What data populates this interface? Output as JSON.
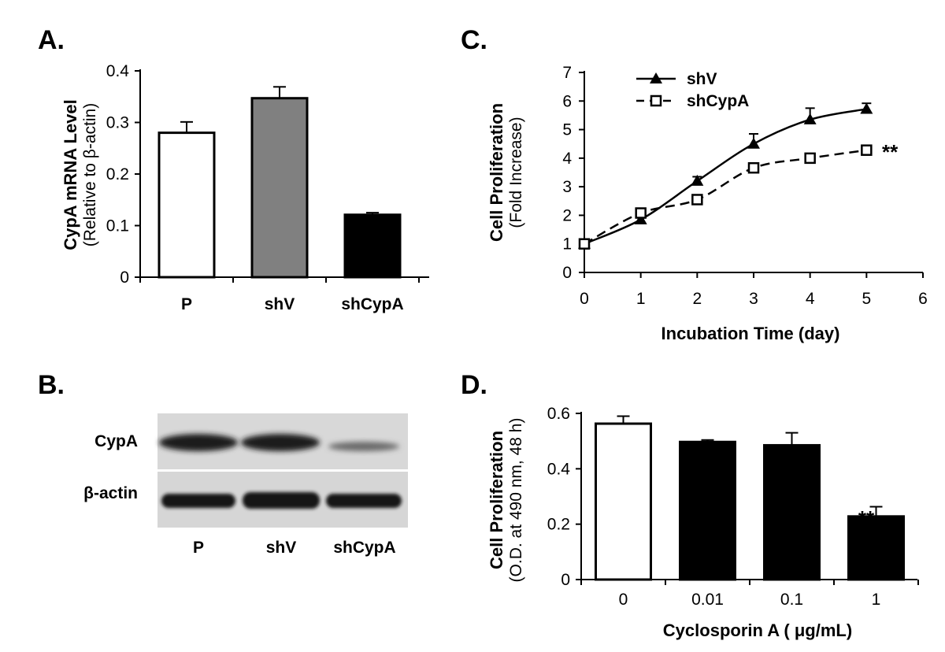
{
  "panels": {
    "a": {
      "letter": "A.",
      "ylabel_main": "CypA mRNA Level",
      "ylabel_sub": "(Relative to β-actin)"
    },
    "b": {
      "letter": "B.",
      "row_labels": [
        "CypA",
        "β-actin"
      ],
      "lane_labels": [
        "P",
        "shV",
        "shCypA"
      ]
    },
    "c": {
      "letter": "C.",
      "ylabel_main": "Cell Proliferation",
      "ylabel_sub": "(Fold Increase)",
      "xlabel": "Incubation Time (day)",
      "annotation": "**"
    },
    "d": {
      "letter": "D.",
      "ylabel_main": "Cell Proliferation",
      "ylabel_sub": "(O.D. at 490 nm, 48 h)",
      "xlabel": "Cyclosporin A ( μg/mL)",
      "annotation": "**"
    }
  },
  "chart_data": [
    {
      "panel": "A",
      "type": "bar",
      "categories": [
        "P",
        "shV",
        "shCypA"
      ],
      "values": [
        0.28,
        0.347,
        0.121
      ],
      "errors": [
        0.021,
        0.022,
        0.004
      ],
      "colors": [
        "#ffffff",
        "#808080",
        "#000000"
      ],
      "ylabel": "CypA mRNA Level (Relative to β-actin)",
      "ylim": [
        0,
        0.4
      ],
      "yticks": [
        "0",
        "0.1",
        "0.2",
        "0.3",
        "0.4"
      ]
    },
    {
      "panel": "C",
      "type": "line",
      "x": [
        0,
        1,
        2,
        3,
        4,
        5
      ],
      "series": [
        {
          "name": "shV",
          "values": [
            1.0,
            1.85,
            3.2,
            4.5,
            5.35,
            5.72
          ],
          "errors": [
            0.08,
            0.1,
            0.15,
            0.35,
            0.4,
            0.2
          ],
          "marker": "triangle",
          "style": "solid"
        },
        {
          "name": "shCypA",
          "values": [
            1.0,
            2.08,
            2.55,
            3.66,
            4.0,
            4.28
          ],
          "errors": [
            0.08,
            0.08,
            0.15,
            0.1,
            0.1,
            0.15
          ],
          "marker": "open-square",
          "style": "dashed"
        }
      ],
      "xlabel": "Incubation Time (day)",
      "ylabel": "Cell Proliferation (Fold Increase)",
      "xlim": [
        0,
        6
      ],
      "ylim": [
        0,
        7
      ],
      "xticks": [
        "0",
        "1",
        "2",
        "3",
        "4",
        "5",
        "6"
      ],
      "yticks": [
        "0",
        "1",
        "2",
        "3",
        "4",
        "5",
        "6",
        "7"
      ],
      "legend": "top-left"
    },
    {
      "panel": "D",
      "type": "bar",
      "categories": [
        "0",
        "0.01",
        "0.1",
        "1"
      ],
      "values": [
        0.563,
        0.497,
        0.485,
        0.228
      ],
      "errors": [
        0.027,
        0.007,
        0.045,
        0.035
      ],
      "colors": [
        "#ffffff",
        "#000000",
        "#000000",
        "#000000"
      ],
      "xlabel": "Cyclosporin A ( μg/mL)",
      "ylabel": "Cell Proliferation (O.D. at 490 nm, 48 h)",
      "ylim": [
        0,
        0.6
      ],
      "yticks": [
        "0",
        "0.2",
        "0.4",
        "0.6"
      ]
    }
  ]
}
